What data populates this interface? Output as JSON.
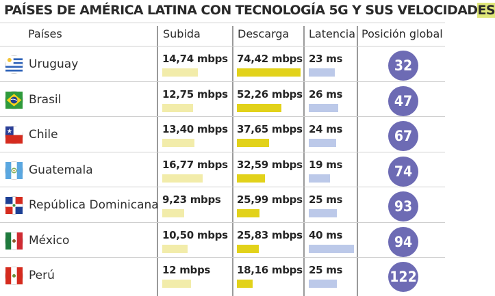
{
  "chart_data": {
    "type": "table",
    "title": "PAÍSES DE AMÉRICA LATINA CON TECNOLOGÍA 5G Y SUS VELOCIDADES",
    "columns": [
      "Países",
      "Subida",
      "Descarga",
      "Latencia",
      "Posición global"
    ],
    "rows": [
      {
        "country": "Uruguay",
        "flag": "flag-uruguay-icon",
        "upload_label": "14,74 mbps",
        "upload": 14.74,
        "download_label": "74,42 mbps",
        "download": 74.42,
        "latency_label": "23 ms",
        "latency": 23,
        "rank": "32"
      },
      {
        "country": "Brasil",
        "flag": "flag-brazil-icon",
        "upload_label": "12,75 mbps",
        "upload": 12.75,
        "download_label": "52,26 mbps",
        "download": 52.26,
        "latency_label": "26 ms",
        "latency": 26,
        "rank": "47"
      },
      {
        "country": "Chile",
        "flag": "flag-chile-icon",
        "upload_label": "13,40 mbps",
        "upload": 13.4,
        "download_label": "37,65 mbps",
        "download": 37.65,
        "latency_label": "24 ms",
        "latency": 24,
        "rank": "67"
      },
      {
        "country": "Guatemala",
        "flag": "flag-guatemala-icon",
        "upload_label": "16,77 mbps",
        "upload": 16.77,
        "download_label": "32,59 mbps",
        "download": 32.59,
        "latency_label": "19 ms",
        "latency": 19,
        "rank": "74"
      },
      {
        "country": "República Dominicana",
        "flag": "flag-dominican-republic-icon",
        "upload_label": "9,23 mbps",
        "upload": 9.23,
        "download_label": "25,99 mbps",
        "download": 25.99,
        "latency_label": "25 ms",
        "latency": 25,
        "rank": "93"
      },
      {
        "country": "México",
        "flag": "flag-mexico-icon",
        "upload_label": "10,50 mbps",
        "upload": 10.5,
        "download_label": "25,83 mbps",
        "download": 25.83,
        "latency_label": "40 ms",
        "latency": 40,
        "rank": "94"
      },
      {
        "country": "Perú",
        "flag": "flag-peru-icon",
        "upload_label": "12 mbps",
        "upload": 12,
        "download_label": "18,16 mbps",
        "download": 18.16,
        "latency_label": "25 ms",
        "latency": 25,
        "rank": "122"
      }
    ],
    "colors": {
      "upload_bar": "#f2ecaa",
      "download_bar": "#e2d21a",
      "latency_bar": "#bcc9e9",
      "rank_circle": "#6d6bb4",
      "title_highlight": "#e0e87a"
    }
  }
}
